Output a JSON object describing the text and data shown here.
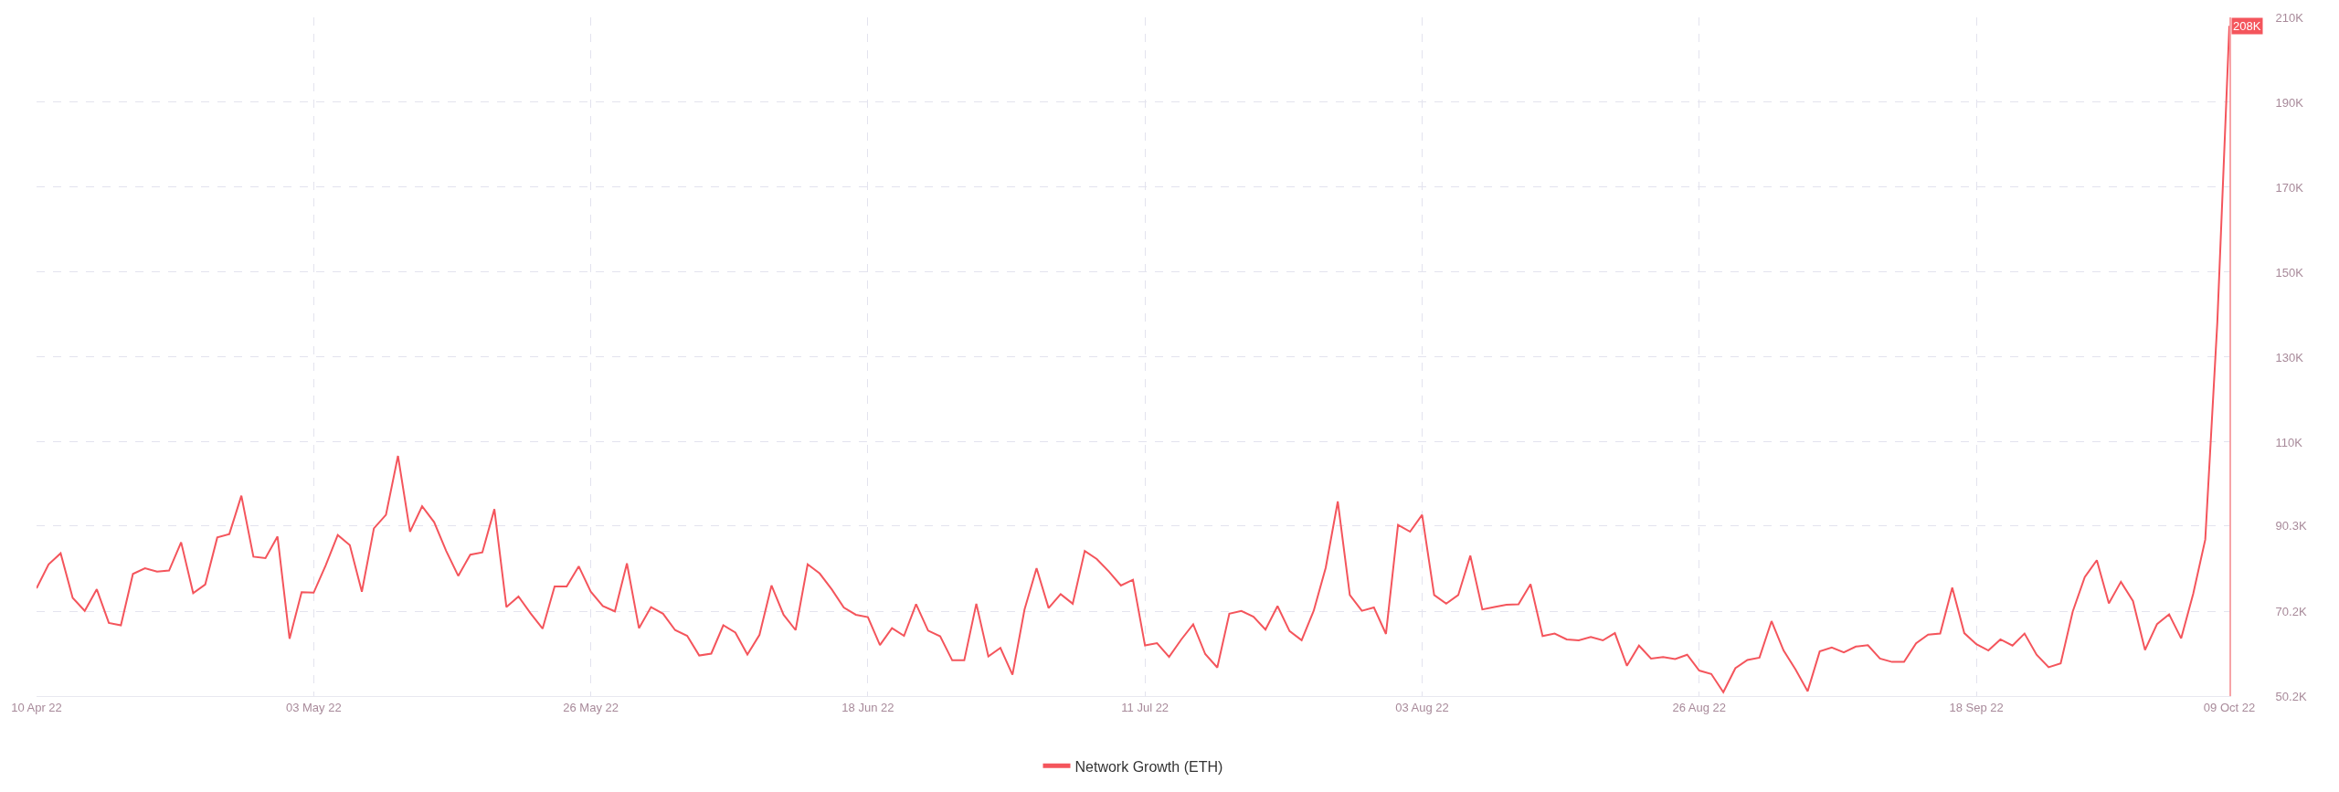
{
  "chart_data": {
    "type": "line",
    "x": [
      "2022-04-10",
      "2022-04-11",
      "2022-04-12",
      "2022-04-13",
      "2022-04-14",
      "2022-04-15",
      "2022-04-16",
      "2022-04-17",
      "2022-04-18",
      "2022-04-19",
      "2022-04-20",
      "2022-04-21",
      "2022-04-22",
      "2022-04-23",
      "2022-04-24",
      "2022-04-25",
      "2022-04-26",
      "2022-04-27",
      "2022-04-28",
      "2022-04-29",
      "2022-04-30",
      "2022-05-01",
      "2022-05-02",
      "2022-05-03",
      "2022-05-04",
      "2022-05-05",
      "2022-05-06",
      "2022-05-07",
      "2022-05-08",
      "2022-05-09",
      "2022-05-10",
      "2022-05-11",
      "2022-05-12",
      "2022-05-13",
      "2022-05-14",
      "2022-05-15",
      "2022-05-16",
      "2022-05-17",
      "2022-05-18",
      "2022-05-19",
      "2022-05-20",
      "2022-05-21",
      "2022-05-22",
      "2022-05-23",
      "2022-05-24",
      "2022-05-25",
      "2022-05-26",
      "2022-05-27",
      "2022-05-28",
      "2022-05-29",
      "2022-05-30",
      "2022-05-31",
      "2022-06-01",
      "2022-06-02",
      "2022-06-03",
      "2022-06-04",
      "2022-06-05",
      "2022-06-06",
      "2022-06-07",
      "2022-06-08",
      "2022-06-09",
      "2022-06-10",
      "2022-06-11",
      "2022-06-12",
      "2022-06-13",
      "2022-06-14",
      "2022-06-15",
      "2022-06-16",
      "2022-06-17",
      "2022-06-18",
      "2022-06-19",
      "2022-06-20",
      "2022-06-21",
      "2022-06-22",
      "2022-06-23",
      "2022-06-24",
      "2022-06-25",
      "2022-06-26",
      "2022-06-27",
      "2022-06-28",
      "2022-06-29",
      "2022-06-30",
      "2022-07-01",
      "2022-07-02",
      "2022-07-03",
      "2022-07-04",
      "2022-07-05",
      "2022-07-06",
      "2022-07-07",
      "2022-07-08",
      "2022-07-09",
      "2022-07-10",
      "2022-07-11",
      "2022-07-12",
      "2022-07-13",
      "2022-07-14",
      "2022-07-15",
      "2022-07-16",
      "2022-07-17",
      "2022-07-18",
      "2022-07-19",
      "2022-07-20",
      "2022-07-21",
      "2022-07-22",
      "2022-07-23",
      "2022-07-24",
      "2022-07-25",
      "2022-07-26",
      "2022-07-27",
      "2022-07-28",
      "2022-07-29",
      "2022-07-30",
      "2022-07-31",
      "2022-08-01",
      "2022-08-02",
      "2022-08-03",
      "2022-08-04",
      "2022-08-05",
      "2022-08-06",
      "2022-08-07",
      "2022-08-08",
      "2022-08-09",
      "2022-08-10",
      "2022-08-11",
      "2022-08-12",
      "2022-08-13",
      "2022-08-14",
      "2022-08-15",
      "2022-08-16",
      "2022-08-17",
      "2022-08-18",
      "2022-08-19",
      "2022-08-20",
      "2022-08-21",
      "2022-08-22",
      "2022-08-23",
      "2022-08-24",
      "2022-08-25",
      "2022-08-26",
      "2022-08-27",
      "2022-08-28",
      "2022-08-29",
      "2022-08-30",
      "2022-08-31",
      "2022-09-01",
      "2022-09-02",
      "2022-09-03",
      "2022-09-04",
      "2022-09-05",
      "2022-09-06",
      "2022-09-07",
      "2022-09-08",
      "2022-09-09",
      "2022-09-10",
      "2022-09-11",
      "2022-09-12",
      "2022-09-13",
      "2022-09-14",
      "2022-09-15",
      "2022-09-16",
      "2022-09-17",
      "2022-09-18",
      "2022-09-19",
      "2022-09-20",
      "2022-09-21",
      "2022-09-22",
      "2022-09-23",
      "2022-09-24",
      "2022-09-25",
      "2022-09-26",
      "2022-09-27",
      "2022-09-28",
      "2022-09-29",
      "2022-09-30",
      "2022-10-01",
      "2022-10-02",
      "2022-10-03",
      "2022-10-04",
      "2022-10-05",
      "2022-10-06",
      "2022-10-07",
      "2022-10-08",
      "2022-10-09"
    ],
    "series": [
      {
        "name": "Network Growth (ETH)",
        "color": "#f4555c",
        "values": [
          75570,
          81220,
          83820,
          73310,
          70260,
          75340,
          67430,
          66870,
          78960,
          80310,
          79520,
          79750,
          86410,
          74440,
          76470,
          87540,
          88340,
          97380,
          83020,
          82690,
          87770,
          63700,
          74660,
          74550,
          81000,
          88110,
          85740,
          74780,
          89690,
          92860,
          106750,
          88900,
          94890,
          91160,
          84380,
          78500,
          83480,
          84040,
          94210,
          71160,
          73650,
          69690,
          66070,
          76020,
          76020,
          80760,
          74780,
          71390,
          70140,
          81440,
          66190,
          71160,
          69580,
          65740,
          64380,
          59750,
          60200,
          66870,
          65170,
          59970,
          64600,
          76240,
          69350,
          65740,
          81220,
          79070,
          75340,
          71050,
          69350,
          68790,
          62230,
          66190,
          64380,
          71840,
          65620,
          64270,
          58620,
          58620,
          71950,
          59520,
          61550,
          55230,
          70590,
          80310,
          70930,
          74210,
          71950,
          84380,
          82460,
          79520,
          76240,
          77600,
          62120,
          62680,
          59410,
          63480,
          67090,
          60090,
          56920,
          69580,
          70260,
          68900,
          65850,
          71390,
          65510,
          63360,
          70260,
          80430,
          96020,
          73980,
          70260,
          71050,
          64830,
          90480,
          88900,
          92860,
          73980,
          71950,
          73980,
          83250,
          70590,
          71160,
          71720,
          71800,
          76550,
          64340,
          64910,
          63550,
          63320,
          64120,
          63320,
          65020,
          57330,
          62080,
          59030,
          59370,
          58920,
          59930,
          56210,
          55410,
          51120,
          56770,
          58690,
          59260,
          67840,
          60950,
          56430,
          51350,
          60720,
          61630,
          60500,
          61860,
          62200,
          59030,
          58240,
          58240,
          62650,
          64680,
          64910,
          75760,
          65020,
          62420,
          60950,
          63550,
          62080,
          64910,
          59930,
          56990,
          57900,
          70100,
          78240,
          82200,
          72020,
          77110,
          72590,
          61060,
          67170,
          69430,
          63780,
          74290,
          87050,
          138100,
          208000
        ]
      }
    ],
    "xlim": [
      "2022-04-10",
      "2022-10-09"
    ],
    "xticks": [
      {
        "value": "2022-04-10",
        "label": "10 Apr 22"
      },
      {
        "value": "2022-05-03",
        "label": "03 May 22"
      },
      {
        "value": "2022-05-26",
        "label": "26 May 22"
      },
      {
        "value": "2022-06-18",
        "label": "18 Jun 22"
      },
      {
        "value": "2022-07-11",
        "label": "11 Jul 22"
      },
      {
        "value": "2022-08-03",
        "label": "03 Aug 22"
      },
      {
        "value": "2022-08-26",
        "label": "26 Aug 22"
      },
      {
        "value": "2022-09-18",
        "label": "18 Sep 22"
      },
      {
        "value": "2022-10-09",
        "label": "09 Oct 22"
      }
    ],
    "ylim": [
      50200,
      210000
    ],
    "yticks": [
      {
        "value": 50200,
        "label": "50.2K"
      },
      {
        "value": 70200,
        "label": "70.2K"
      },
      {
        "value": 90300,
        "label": "90.3K"
      },
      {
        "value": 110000,
        "label": "110K"
      },
      {
        "value": 130000,
        "label": "130K"
      },
      {
        "value": 150000,
        "label": "150K"
      },
      {
        "value": 170000,
        "label": "170K"
      },
      {
        "value": 190000,
        "label": "190K"
      },
      {
        "value": 210000,
        "label": "210K"
      }
    ],
    "annotations": [
      {
        "text": "208K",
        "x": "2022-10-09",
        "y": 208000
      }
    ],
    "grid": true,
    "legend": "bottom",
    "line_style": "solid",
    "marker": "none"
  }
}
